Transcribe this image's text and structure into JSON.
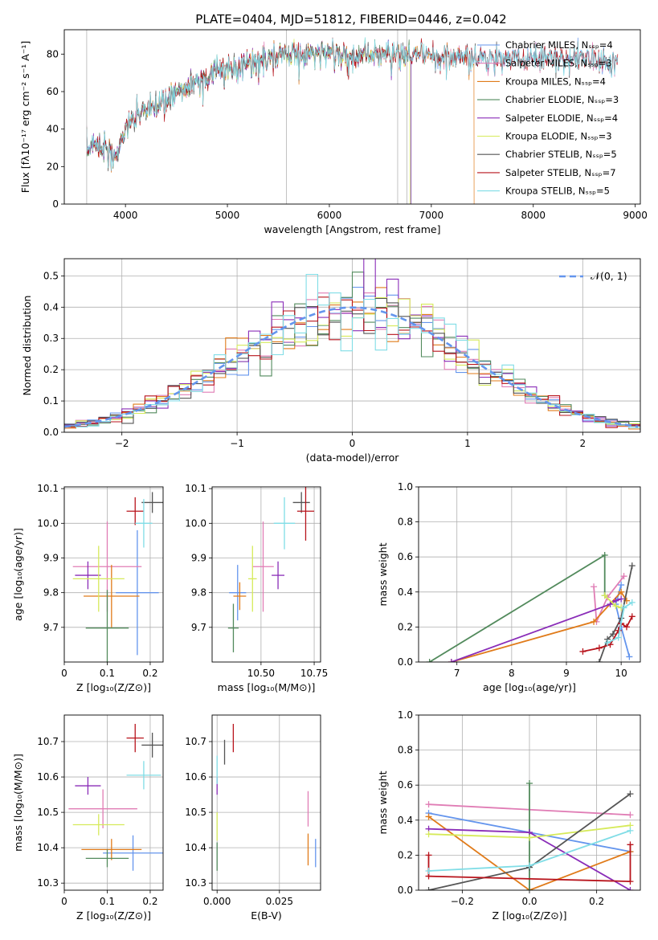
{
  "title": "PLATE=0404, MJD=51812, FIBERID=0446, z=0.042",
  "colors": {
    "Chabrier MILES": "#6495ED",
    "Salpeter MILES": "#E07DB5",
    "Kroupa MILES": "#E07B1A",
    "Chabrier ELODIE": "#528A5C",
    "Salpeter ELODIE": "#8A2DB8",
    "Kroupa ELODIE": "#D6EA5A",
    "Chabrier STELIB": "#555555",
    "Salpeter STELIB": "#B8141C",
    "Kroupa STELIB": "#80DDE6"
  },
  "chart_data": [
    {
      "type": "line",
      "xlabel": "wavelength [Angstrom, rest frame]",
      "ylabel": "Flux [fλ10⁻¹⁷ erg cm⁻² s⁻¹ A⁻¹]",
      "xlim": [
        3400,
        9050
      ],
      "ylim": [
        0,
        93
      ],
      "xticks": [
        4000,
        5000,
        6000,
        7000,
        8000,
        9000
      ],
      "yticks": [
        0,
        20,
        40,
        60,
        80
      ],
      "legend_position": "upper right",
      "legend": [
        {
          "label": "Chabrier MILES, Nₛₛₚ=4",
          "key": "Chabrier MILES"
        },
        {
          "label": "Salpeter MILES, Nₛₛₚ=3",
          "key": "Salpeter MILES"
        },
        {
          "label": "Kroupa MILES, Nₛₛₚ=4",
          "key": "Kroupa MILES"
        },
        {
          "label": "Chabrier ELODIE, Nₛₛₚ=3",
          "key": "Chabrier ELODIE"
        },
        {
          "label": "Salpeter ELODIE, Nₛₛₚ=4",
          "key": "Salpeter ELODIE"
        },
        {
          "label": "Kroupa ELODIE, Nₛₛₚ=3",
          "key": "Kroupa ELODIE"
        },
        {
          "label": "Chabrier STELIB, Nₛₛₚ=5",
          "key": "Chabrier STELIB"
        },
        {
          "label": "Salpeter STELIB, Nₛₛₚ=7",
          "key": "Salpeter STELIB"
        },
        {
          "label": "Kroupa STELIB, Nₛₛₚ=5",
          "key": "Kroupa STELIB"
        }
      ],
      "continuum": {
        "x": [
          3620,
          3700,
          3800,
          3900,
          4000,
          4100,
          4200,
          4300,
          4400,
          4500,
          4700,
          4900,
          5100,
          5300,
          5500,
          5700,
          5900,
          6100,
          6300,
          6500,
          6700,
          6900,
          7100,
          7300,
          7500,
          7700,
          7900,
          8100,
          8300,
          8500,
          8700,
          8830
        ],
        "y": [
          28,
          33,
          30,
          24,
          40,
          47,
          50,
          52,
          55,
          60,
          66,
          70,
          74,
          76,
          78,
          80,
          81,
          80,
          79,
          80,
          80,
          79,
          78,
          79,
          78,
          78,
          77,
          78,
          78,
          77,
          76,
          76
        ]
      },
      "series_extents": [
        {
          "key": "Chabrier MILES",
          "x_range": [
            3620,
            8830
          ]
        },
        {
          "key": "Salpeter MILES",
          "x_range": [
            3620,
            8830
          ]
        },
        {
          "key": "Kroupa MILES",
          "x_range": [
            3620,
            7420
          ]
        },
        {
          "key": "Chabrier ELODIE",
          "x_range": [
            3620,
            6800
          ]
        },
        {
          "key": "Salpeter ELODIE",
          "x_range": [
            3620,
            6800
          ]
        },
        {
          "key": "Kroupa ELODIE",
          "x_range": [
            3900,
            6790
          ]
        },
        {
          "key": "Chabrier STELIB",
          "x_range": [
            3620,
            8830
          ]
        },
        {
          "key": "Salpeter STELIB",
          "x_range": [
            3620,
            8830
          ]
        },
        {
          "key": "Kroupa STELIB",
          "x_range": [
            3620,
            8830
          ]
        }
      ]
    },
    {
      "type": "line",
      "xlabel": "(data-model)/error",
      "ylabel": "Normed distribution",
      "xlim": [
        -2.5,
        2.5
      ],
      "ylim": [
        0,
        0.555
      ],
      "xticks": [
        -2,
        -1,
        0,
        1,
        2
      ],
      "yticks": [
        0.0,
        0.1,
        0.2,
        0.3,
        0.4,
        0.5
      ],
      "grid": true,
      "legend_position": "upper right",
      "reference": {
        "label": "𝒩(0, 1)",
        "mu": 0,
        "sigma": 1
      },
      "bin_width": 0.1
    },
    {
      "type": "scatter",
      "xlabel": "Z [log₁₀(Z/Z⊙)]",
      "ylabel": "age  [log₁₀(age/yr)]",
      "xlim": [
        0,
        0.23
      ],
      "ylim": [
        9.6,
        10.105
      ],
      "xticks": [
        0.0,
        0.1,
        0.2
      ],
      "yticks": [
        9.7,
        9.8,
        9.9,
        10.0,
        10.1
      ],
      "grid": true,
      "errorbars": [
        {
          "key": "Chabrier MILES",
          "x": 0.17,
          "xerr": 0.05,
          "y": 9.8,
          "yerr": 0.18
        },
        {
          "key": "Salpeter MILES",
          "x": 0.1,
          "xerr": 0.08,
          "y": 9.875,
          "yerr": 0.13
        },
        {
          "key": "Kroupa MILES",
          "x": 0.11,
          "xerr": 0.065,
          "y": 9.79,
          "yerr": 0.09
        },
        {
          "key": "Chabrier ELODIE",
          "x": 0.1,
          "xerr": 0.05,
          "y": 9.698,
          "yerr": 0.11
        },
        {
          "key": "Salpeter ELODIE",
          "x": 0.055,
          "xerr": 0.03,
          "y": 9.85,
          "yerr": 0.04
        },
        {
          "key": "Kroupa ELODIE",
          "x": 0.08,
          "xerr": 0.06,
          "y": 9.84,
          "yerr": 0.095
        },
        {
          "key": "Chabrier STELIB",
          "x": 0.205,
          "xerr": 0.025,
          "y": 10.06,
          "yerr": 0.03
        },
        {
          "key": "Salpeter STELIB",
          "x": 0.165,
          "xerr": 0.02,
          "y": 10.035,
          "yerr": 0.04
        },
        {
          "key": "Kroupa STELIB",
          "x": 0.185,
          "xerr": 0.02,
          "y": 10.0,
          "yerr": 0.07
        }
      ]
    },
    {
      "type": "scatter",
      "xlabel": "mass [log₁₀(M/M⊙)]",
      "ylabel": "",
      "xlim": [
        10.27,
        10.78
      ],
      "ylim": [
        9.6,
        10.105
      ],
      "xticks": [
        10.5,
        10.75
      ],
      "xticklabels": [
        "10.50",
        "10.75"
      ],
      "yticks": [
        9.7,
        9.8,
        9.9,
        10.0,
        10.1
      ],
      "grid": true,
      "errorbars": [
        {
          "key": "Chabrier MILES",
          "x": 10.39,
          "xerr": 0.04,
          "y": 9.8,
          "yerr": 0.08
        },
        {
          "key": "Salpeter MILES",
          "x": 10.51,
          "xerr": 0.05,
          "y": 9.875,
          "yerr": 0.13
        },
        {
          "key": "Kroupa MILES",
          "x": 10.4,
          "xerr": 0.03,
          "y": 9.79,
          "yerr": 0.04
        },
        {
          "key": "Chabrier ELODIE",
          "x": 10.37,
          "xerr": 0.025,
          "y": 9.698,
          "yerr": 0.07
        },
        {
          "key": "Salpeter ELODIE",
          "x": 10.58,
          "xerr": 0.03,
          "y": 9.85,
          "yerr": 0.04
        },
        {
          "key": "Kroupa ELODIE",
          "x": 10.46,
          "xerr": 0.02,
          "y": 9.84,
          "yerr": 0.095
        },
        {
          "key": "Chabrier STELIB",
          "x": 10.69,
          "xerr": 0.04,
          "y": 10.06,
          "yerr": 0.03
        },
        {
          "key": "Salpeter STELIB",
          "x": 10.71,
          "xerr": 0.04,
          "y": 10.035,
          "yerr": 0.085
        },
        {
          "key": "Kroupa STELIB",
          "x": 10.61,
          "xerr": 0.05,
          "y": 10.0,
          "yerr": 0.075
        }
      ]
    },
    {
      "type": "line",
      "xlabel": "age  [log₁₀(age/yr)]",
      "ylabel": "mass weight",
      "xlim": [
        6.3,
        10.35
      ],
      "ylim": [
        0,
        1.0
      ],
      "xticks": [
        7,
        8,
        9,
        10
      ],
      "yticks": [
        0.0,
        0.2,
        0.4,
        0.6,
        0.8,
        1.0
      ],
      "grid": true,
      "series": [
        {
          "key": "Chabrier MILES",
          "x": [
            10.0,
            9.9,
            10.0,
            10.15
          ],
          "y": [
            0.44,
            0.33,
            0.2,
            0.03
          ]
        },
        {
          "key": "Salpeter MILES",
          "x": [
            9.5,
            9.55,
            9.75,
            10.05
          ],
          "y": [
            0.43,
            0.23,
            0.37,
            0.49
          ]
        },
        {
          "key": "Kroupa MILES",
          "x": [
            6.9,
            9.5,
            10.0,
            10.1
          ],
          "y": [
            0.0,
            0.23,
            0.4,
            0.35
          ]
        },
        {
          "key": "Chabrier ELODIE",
          "x": [
            6.5,
            9.7,
            9.7
          ],
          "y": [
            0.0,
            0.61,
            0.38
          ]
        },
        {
          "key": "Salpeter ELODIE",
          "x": [
            6.9,
            9.8,
            9.9,
            10.0
          ],
          "y": [
            0.0,
            0.33,
            0.35,
            0.36
          ]
        },
        {
          "key": "Kroupa ELODIE",
          "x": [
            9.7,
            9.9,
            10.0
          ],
          "y": [
            0.38,
            0.32,
            0.31
          ]
        },
        {
          "key": "Chabrier STELIB",
          "x": [
            9.6,
            9.75,
            9.85,
            10.0,
            10.2
          ],
          "y": [
            0.0,
            0.13,
            0.16,
            0.25,
            0.55
          ]
        },
        {
          "key": "Salpeter STELIB",
          "x": [
            9.3,
            9.6,
            9.8,
            9.95,
            10.0,
            10.1,
            10.2
          ],
          "y": [
            0.06,
            0.08,
            0.1,
            0.18,
            0.22,
            0.2,
            0.26
          ]
        },
        {
          "key": "Kroupa STELIB",
          "x": [
            9.75,
            9.95,
            10.05,
            10.2
          ],
          "y": [
            0.11,
            0.14,
            0.31,
            0.34
          ]
        }
      ]
    },
    {
      "type": "scatter",
      "xlabel": "Z [log₁₀(Z/Z⊙)]",
      "ylabel": "mass [log₁₀(M/M⊙)]",
      "xlim": [
        0,
        0.23
      ],
      "ylim": [
        10.28,
        10.775
      ],
      "xticks": [
        0.0,
        0.1,
        0.2
      ],
      "yticks": [
        10.3,
        10.4,
        10.5,
        10.6,
        10.7
      ],
      "grid": true,
      "errorbars": [
        {
          "key": "Chabrier MILES",
          "x": 0.16,
          "xerr": 0.07,
          "y": 10.385,
          "yerr": 0.05
        },
        {
          "key": "Salpeter MILES",
          "x": 0.09,
          "xerr": 0.08,
          "y": 10.51,
          "yerr": 0.055
        },
        {
          "key": "Kroupa MILES",
          "x": 0.11,
          "xerr": 0.07,
          "y": 10.395,
          "yerr": 0.03
        },
        {
          "key": "Chabrier ELODIE",
          "x": 0.1,
          "xerr": 0.05,
          "y": 10.37,
          "yerr": 0.025
        },
        {
          "key": "Salpeter ELODIE",
          "x": 0.055,
          "xerr": 0.03,
          "y": 10.575,
          "yerr": 0.025
        },
        {
          "key": "Kroupa ELODIE",
          "x": 0.08,
          "xerr": 0.06,
          "y": 10.465,
          "yerr": 0.03
        },
        {
          "key": "Chabrier STELIB",
          "x": 0.205,
          "xerr": 0.025,
          "y": 10.69,
          "yerr": 0.035
        },
        {
          "key": "Salpeter STELIB",
          "x": 0.165,
          "xerr": 0.02,
          "y": 10.71,
          "yerr": 0.04
        },
        {
          "key": "Kroupa STELIB",
          "x": 0.185,
          "xerr": 0.04,
          "y": 10.605,
          "yerr": 0.04
        }
      ]
    },
    {
      "type": "scatter",
      "xlabel": "E(B-V)",
      "ylabel": "",
      "xlim": [
        -0.002,
        0.0415
      ],
      "ylim": [
        10.28,
        10.775
      ],
      "xticks": [
        0.0,
        0.025
      ],
      "xticklabels": [
        "0.000",
        "0.025"
      ],
      "yticks": [
        10.3,
        10.4,
        10.5,
        10.6,
        10.7
      ],
      "grid": true,
      "errorbars": [
        {
          "key": "Chabrier MILES",
          "x": 0.0395,
          "xerr": 0.0,
          "y": 10.385,
          "yerr": 0.04
        },
        {
          "key": "Salpeter MILES",
          "x": 0.0365,
          "xerr": 0.0,
          "y": 10.51,
          "yerr": 0.05
        },
        {
          "key": "Kroupa MILES",
          "x": 0.0365,
          "xerr": 0.0,
          "y": 10.395,
          "yerr": 0.045
        },
        {
          "key": "Chabrier ELODIE",
          "x": 0.0,
          "xerr": 0.0,
          "y": 10.375,
          "yerr": 0.04
        },
        {
          "key": "Salpeter ELODIE",
          "x": 0.0,
          "xerr": 0.0,
          "y": 10.575,
          "yerr": 0.025
        },
        {
          "key": "Kroupa ELODIE",
          "x": 0.0,
          "xerr": 0.0,
          "y": 10.46,
          "yerr": 0.04
        },
        {
          "key": "Chabrier STELIB",
          "x": 0.003,
          "xerr": 0.0,
          "y": 10.67,
          "yerr": 0.035
        },
        {
          "key": "Salpeter STELIB",
          "x": 0.0065,
          "xerr": 0.0,
          "y": 10.71,
          "yerr": 0.04
        },
        {
          "key": "Kroupa STELIB",
          "x": 0.0,
          "xerr": 0.0,
          "y": 10.62,
          "yerr": 0.04
        }
      ]
    },
    {
      "type": "line",
      "xlabel": "Z [log₁₀(Z/Z⊙)]",
      "ylabel": "mass weight",
      "xlim": [
        -0.33,
        0.33
      ],
      "ylim": [
        0,
        1.0
      ],
      "xticks": [
        -0.2,
        0.0,
        0.2
      ],
      "xticklabels": [
        "−0.2",
        "0.0",
        "0.2"
      ],
      "yticks": [
        0.0,
        0.2,
        0.4,
        0.6,
        0.8,
        1.0
      ],
      "grid": true,
      "series": [
        {
          "key": "Chabrier MILES",
          "x": [
            -0.3,
            0.0,
            0.3
          ],
          "y": [
            0.44,
            0.33,
            0.22
          ]
        },
        {
          "key": "Salpeter MILES",
          "x": [
            -0.3,
            0.3
          ],
          "y": [
            0.49,
            0.43
          ]
        },
        {
          "key": "Kroupa MILES",
          "x": [
            -0.3,
            0.0,
            0.3
          ],
          "y": [
            0.42,
            0.0,
            0.22
          ]
        },
        {
          "key": "Chabrier ELODIE",
          "x": [
            0.0,
            0.0
          ],
          "y": [
            0.61,
            0.0
          ]
        },
        {
          "key": "Salpeter ELODIE",
          "x": [
            -0.3,
            0.0,
            0.3
          ],
          "y": [
            0.35,
            0.33,
            0.0
          ]
        },
        {
          "key": "Kroupa ELODIE",
          "x": [
            -0.3,
            0.0,
            0.3
          ],
          "y": [
            0.32,
            0.3,
            0.37
          ]
        },
        {
          "key": "Chabrier STELIB",
          "x": [
            -0.3,
            0.0,
            0.3
          ],
          "y": [
            0.0,
            0.13,
            0.55
          ]
        },
        {
          "key": "Salpeter STELIB",
          "x": [
            -0.3,
            -0.3,
            0.3,
            0.3
          ],
          "y": [
            0.2,
            0.08,
            0.05,
            0.26
          ]
        },
        {
          "key": "Kroupa STELIB",
          "x": [
            -0.3,
            0.0,
            0.3
          ],
          "y": [
            0.11,
            0.14,
            0.34
          ]
        }
      ]
    }
  ]
}
